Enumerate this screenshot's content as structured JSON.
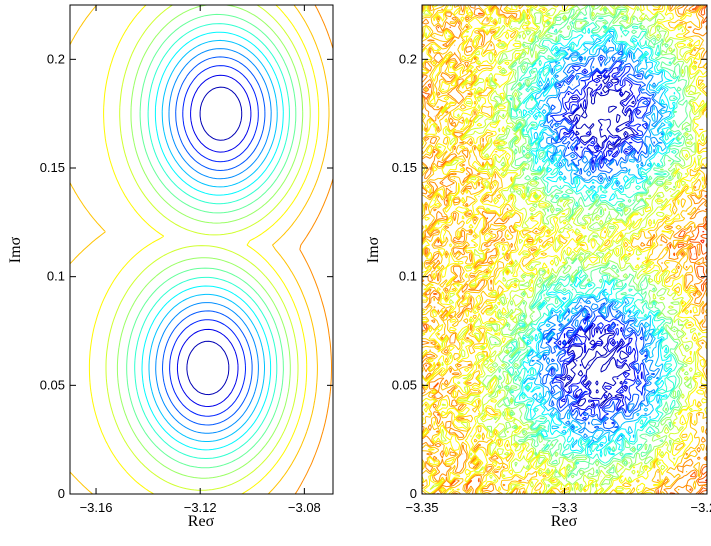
{
  "chart_data": [
    {
      "type": "contour",
      "xlabel": "Reσ",
      "ylabel": "Imσ",
      "xlim": [
        -3.17,
        -3.069
      ],
      "ylim": [
        0,
        0.225
      ],
      "x_ticks": [
        -3.16,
        -3.12,
        -3.08
      ],
      "x_tick_labels": [
        "−3.16",
        "−3.12",
        "−3.08"
      ],
      "y_ticks": [
        0,
        0.05,
        0.1,
        0.15,
        0.2
      ],
      "y_tick_labels": [
        "0",
        "0.05",
        "0.1",
        "0.15",
        "0.2"
      ],
      "colormap": "jet",
      "noise": 0,
      "background": {
        "center_x": -3.05,
        "scale_x": 0.055,
        "weight": 0.62
      },
      "peaks": [
        {
          "x": -3.112,
          "y": 0.175,
          "depth": 1.0,
          "sigma_x": 0.021,
          "sigma_y": 0.032
        },
        {
          "x": -3.117,
          "y": 0.058,
          "depth": 1.0,
          "sigma_x": 0.021,
          "sigma_y": 0.032
        }
      ]
    },
    {
      "type": "contour",
      "xlabel": "Reσ",
      "ylabel": "Imσ",
      "xlim": [
        -3.35,
        -3.25
      ],
      "ylim": [
        0,
        0.225
      ],
      "x_ticks": [
        -3.35,
        -3.3,
        -3.25
      ],
      "x_tick_labels": [
        "−3.35",
        "−3.3",
        "−3.25"
      ],
      "y_ticks": [
        0,
        0.05,
        0.1,
        0.15,
        0.2
      ],
      "y_tick_labels": [
        "0",
        "0.05",
        "0.1",
        "0.15",
        "0.2"
      ],
      "colormap": "jet",
      "noise": 0.18,
      "background": {
        "center_x": -3.235,
        "scale_x": 0.04,
        "weight": 0.6
      },
      "peaks": [
        {
          "x": -3.286,
          "y": 0.175,
          "depth": 1.0,
          "sigma_x": 0.02,
          "sigma_y": 0.03
        },
        {
          "x": -3.288,
          "y": 0.058,
          "depth": 1.0,
          "sigma_x": 0.02,
          "sigma_y": 0.03
        }
      ]
    }
  ]
}
